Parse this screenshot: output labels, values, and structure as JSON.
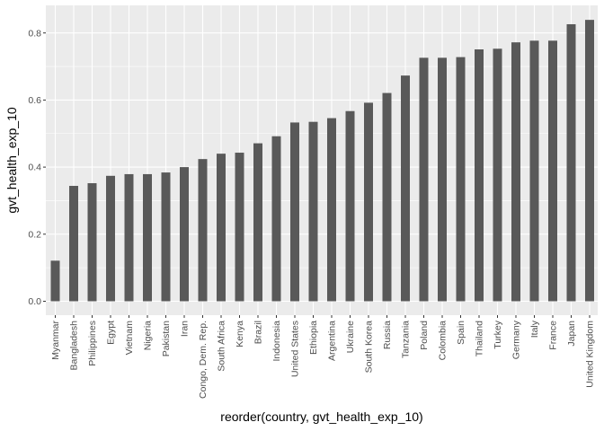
{
  "chart_data": {
    "type": "bar",
    "xlabel": "reorder(country, gvt_health_exp_10)",
    "ylabel": "gvt_health_exp_10",
    "ylim": [
      0,
      0.84
    ],
    "yticks": [
      0.0,
      0.2,
      0.4,
      0.6,
      0.8
    ],
    "ytick_labels": [
      "0.0",
      "0.2",
      "0.4",
      "0.6",
      "0.8"
    ],
    "grid": true,
    "colors": {
      "panel": "#ebebeb",
      "grid": "#ffffff",
      "bar": "#595959",
      "tick_text": "#4d4d4d"
    },
    "categories": [
      "Myanmar",
      "Bangladesh",
      "Philippines",
      "Egypt",
      "Vietnam",
      "Nigeria",
      "Pakistan",
      "Iran",
      "Congo, Dem. Rep.",
      "South Africa",
      "Kenya",
      "Brazil",
      "Indonesia",
      "United States",
      "Ethiopia",
      "Argentina",
      "Ukraine",
      "South Korea",
      "Russia",
      "Tanzania",
      "Poland",
      "Colombia",
      "Spain",
      "Thailand",
      "Turkey",
      "Germany",
      "Italy",
      "France",
      "Japan",
      "United Kingdom"
    ],
    "values": [
      0.121,
      0.344,
      0.352,
      0.374,
      0.379,
      0.379,
      0.384,
      0.4,
      0.424,
      0.44,
      0.443,
      0.471,
      0.492,
      0.533,
      0.535,
      0.546,
      0.567,
      0.592,
      0.621,
      0.673,
      0.726,
      0.726,
      0.728,
      0.751,
      0.753,
      0.772,
      0.777,
      0.777,
      0.826,
      0.839
    ]
  }
}
